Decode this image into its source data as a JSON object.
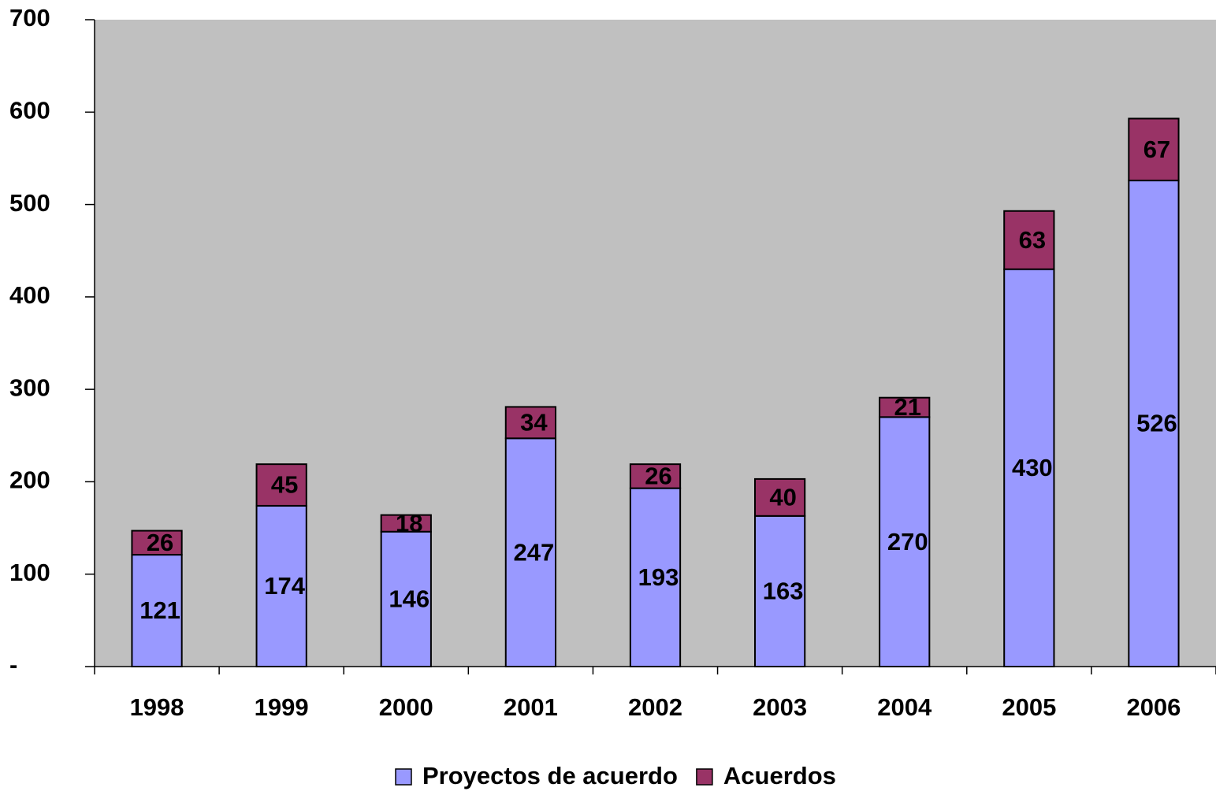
{
  "chart_data": {
    "type": "bar",
    "stacked": true,
    "categories": [
      "1998",
      "1999",
      "2000",
      "2001",
      "2002",
      "2003",
      "2004",
      "2005",
      "2006"
    ],
    "series": [
      {
        "name": "Proyectos de acuerdo",
        "color": "#9999ff",
        "values": [
          121,
          174,
          146,
          247,
          193,
          163,
          270,
          430,
          526
        ]
      },
      {
        "name": "Acuerdos",
        "color": "#993366",
        "values": [
          26,
          45,
          18,
          34,
          26,
          40,
          21,
          63,
          67
        ]
      }
    ],
    "ylim": [
      0,
      700
    ],
    "yticks": [
      {
        "value": 0,
        "label": "-"
      },
      100,
      200,
      300,
      400,
      500,
      600,
      700
    ],
    "plot_background": "#c0c0c0",
    "legend": "bottom"
  }
}
